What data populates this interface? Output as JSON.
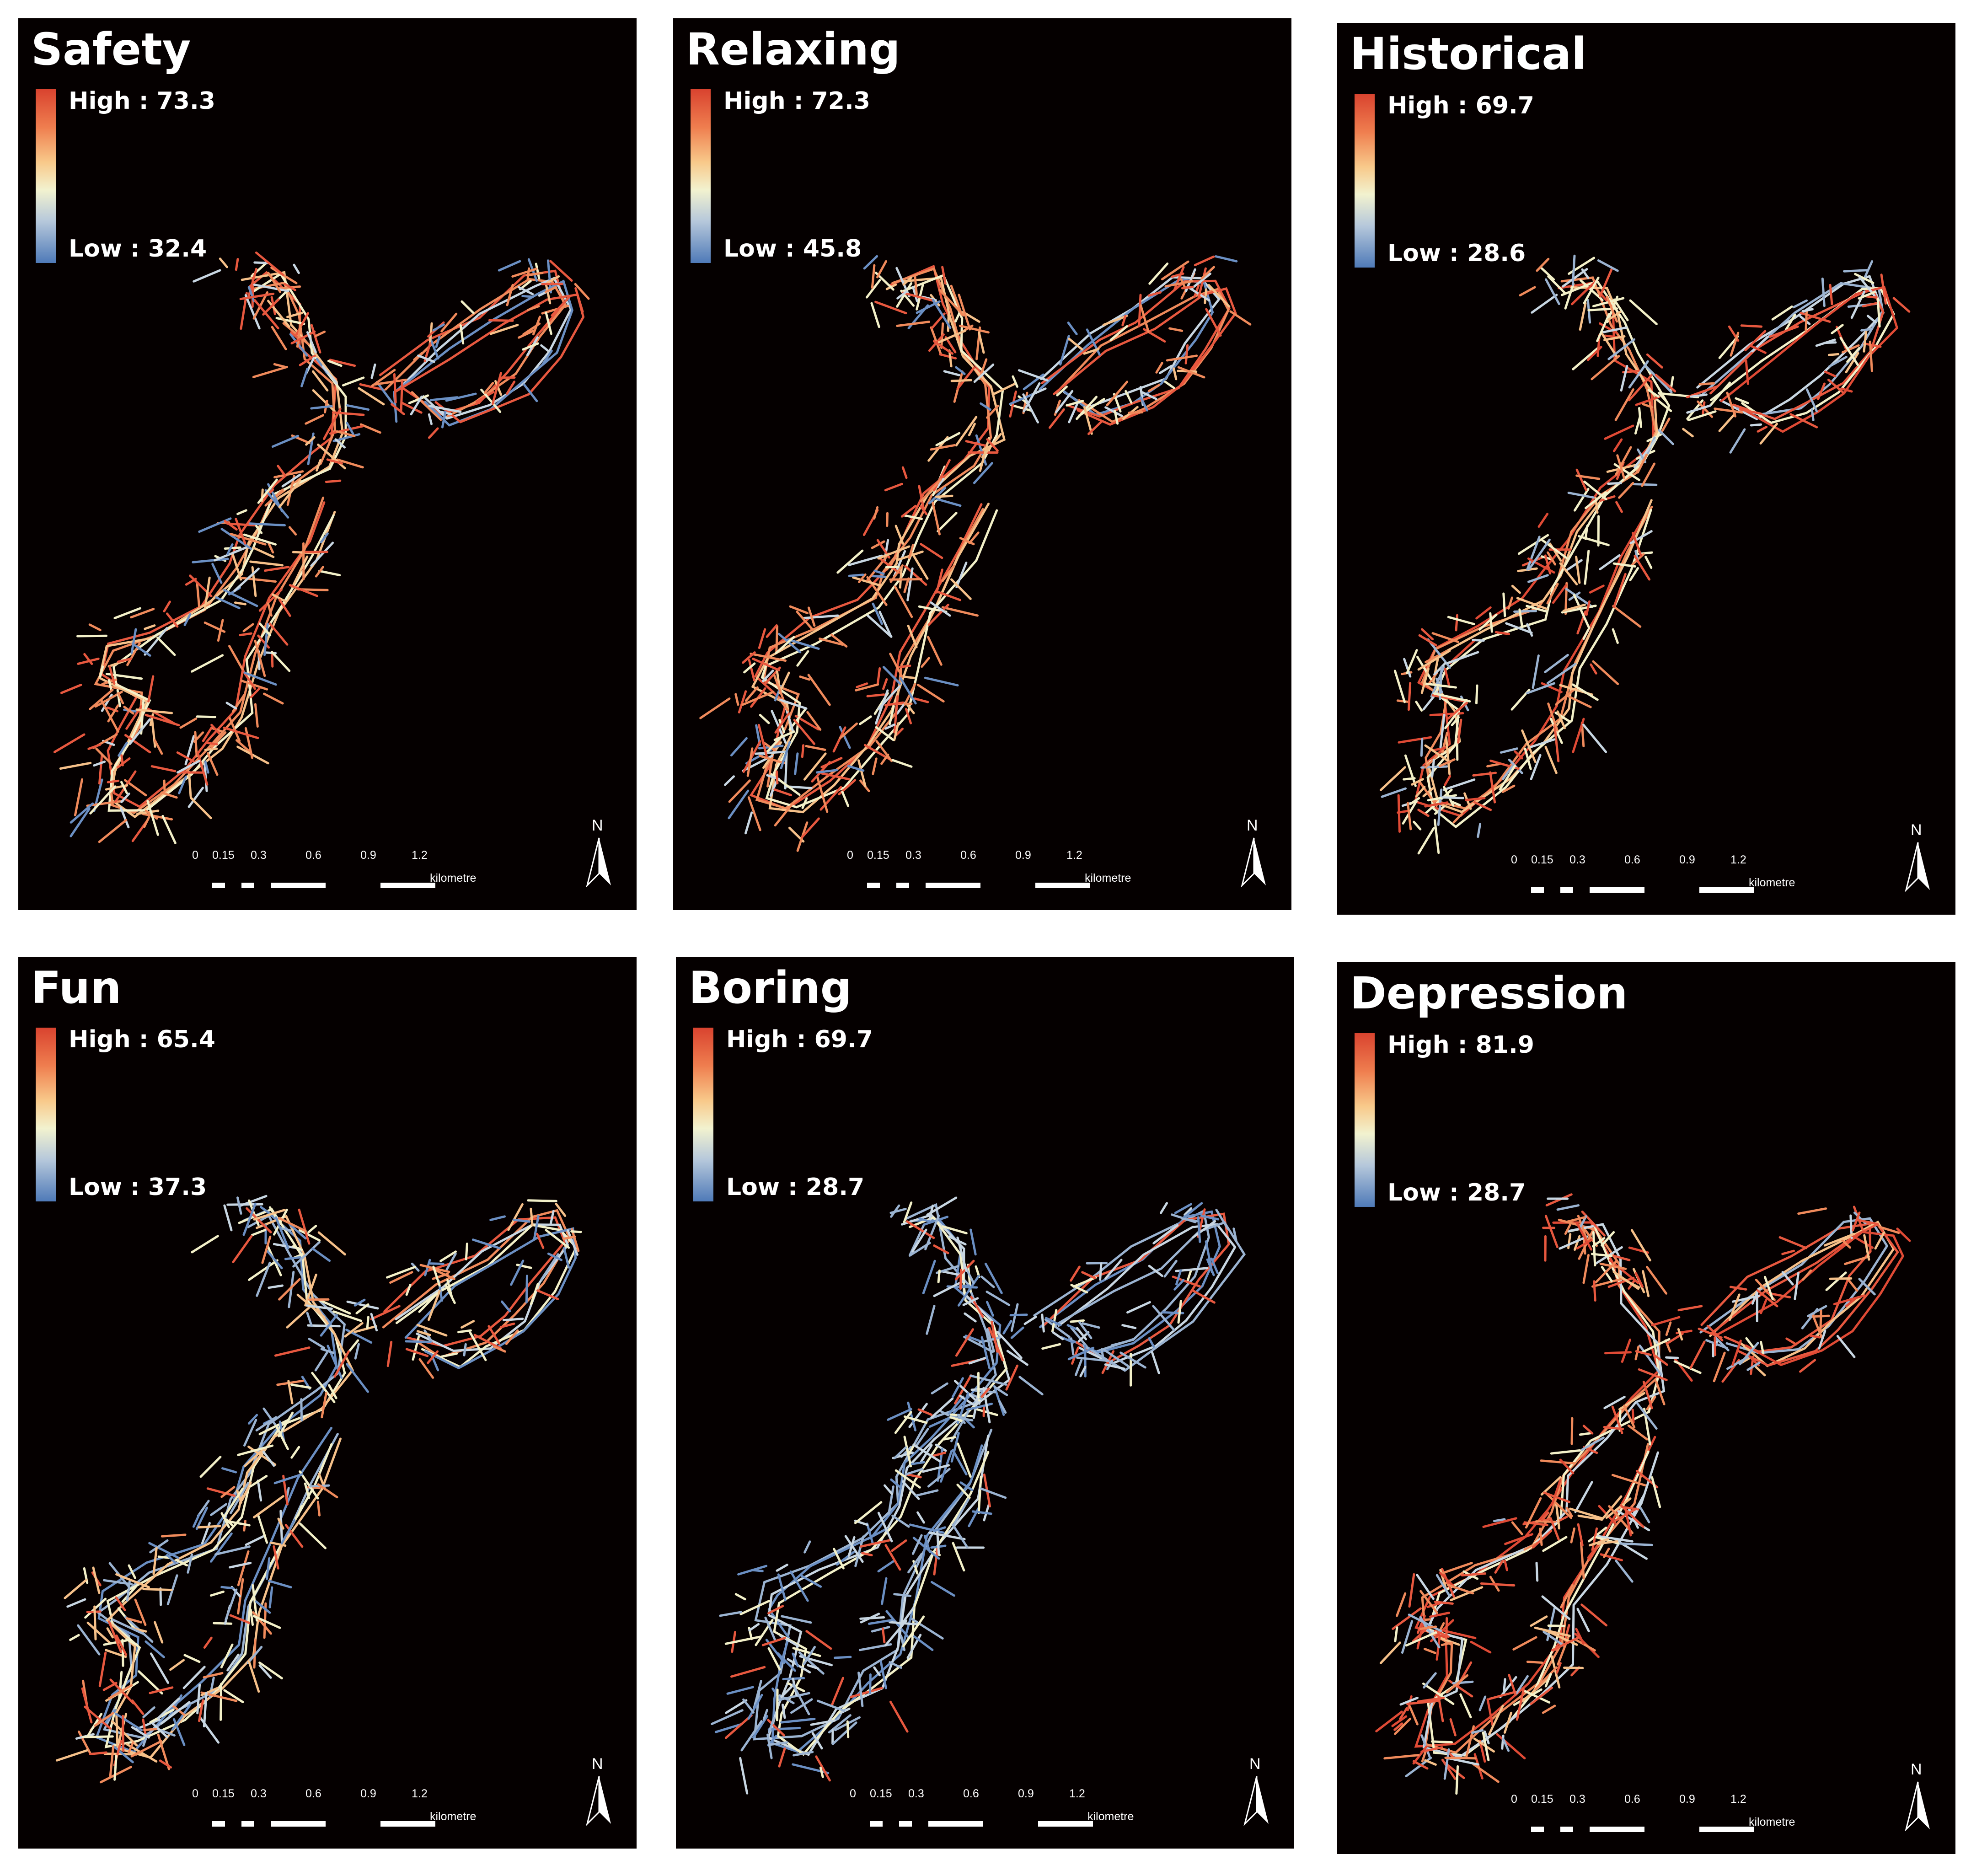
{
  "panels": [
    {
      "title": "Safety",
      "high": "High : 73.3",
      "low": "Low : 32.4"
    },
    {
      "title": "Relaxing",
      "high": "High : 72.3",
      "low": "Low : 45.8"
    },
    {
      "title": "Historical",
      "high": "High : 69.7",
      "low": "Low : 28.6"
    },
    {
      "title": "Fun",
      "high": "High : 65.4",
      "low": "Low : 37.3"
    },
    {
      "title": "Boring",
      "high": "High : 69.7",
      "low": "Low : 28.7"
    },
    {
      "title": "Depression",
      "high": "High : 81.9",
      "low": "Low : 28.7"
    }
  ],
  "scale": {
    "ticks": [
      "0",
      "0.15",
      "0.3",
      "0.6",
      "0.9",
      "1.2"
    ],
    "unit": "kilometre"
  },
  "north_label": "N",
  "legend_colors": {
    "high": "#d9432f",
    "mid": "#f2f2cf",
    "low": "#4f7ab8"
  }
}
